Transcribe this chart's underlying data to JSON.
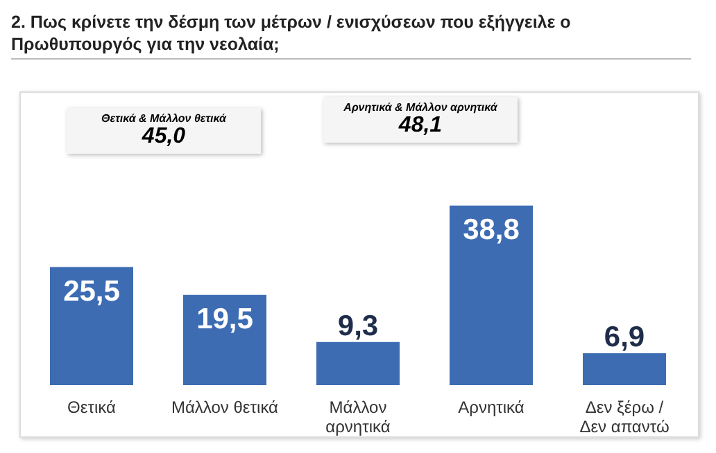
{
  "chart_data": {
    "type": "bar",
    "title": "2. Πως κρίνετε την δέσμη των μέτρων / ενισχύσεων που εξήγγειλε ο Πρωθυπουργός για την νεολαία;",
    "categories": [
      "Θετικά",
      "Μάλλον θετικά",
      "Μάλλον αρνητικά",
      "Αρνητικά",
      "Δεν ξέρω / Δεν απαντώ"
    ],
    "values": [
      25.5,
      19.5,
      9.3,
      38.8,
      6.9
    ],
    "value_labels": [
      "25,5",
      "19,5",
      "9,3",
      "38,8",
      "6,9"
    ],
    "color": "#3d6cb3",
    "annotations": [
      "Θετικά & Μάλλον θετικά",
      "45,0",
      "Αρνητικά & Μάλλον αρνητικά",
      "48,1"
    ],
    "grid": false,
    "legend": false
  }
}
